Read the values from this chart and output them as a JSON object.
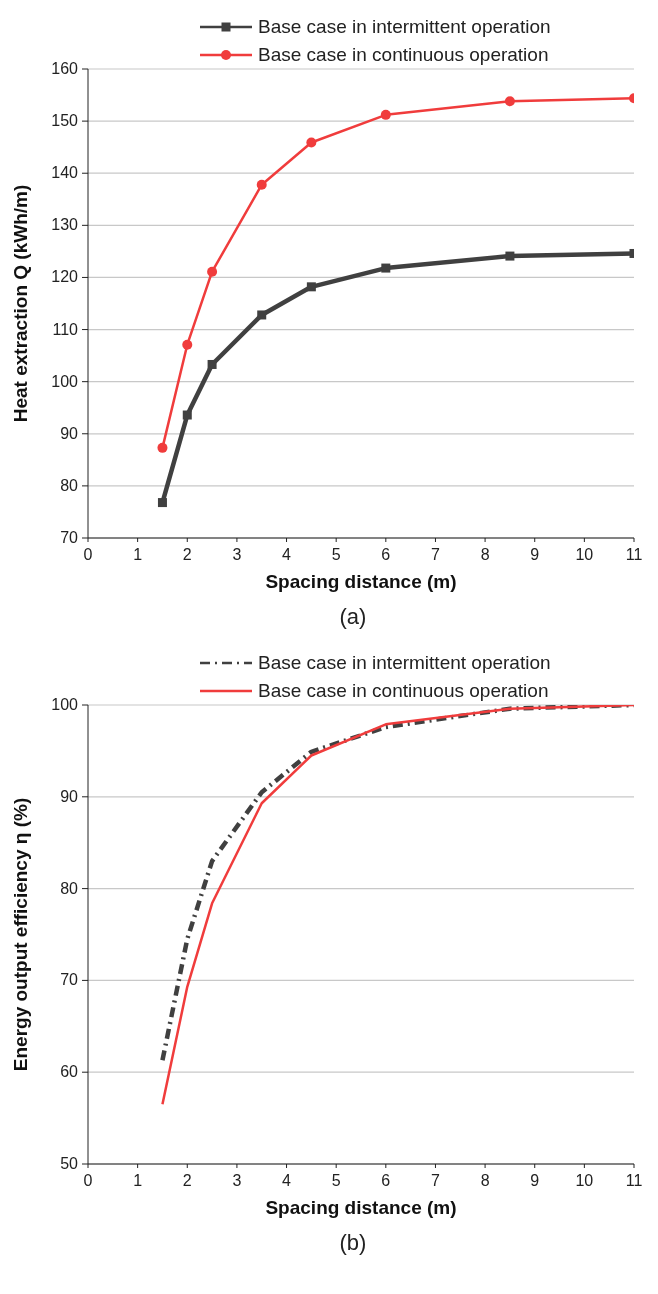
{
  "chart_data": [
    {
      "type": "line",
      "xlabel": "Spacing distance (m)",
      "ylabel": "Heat extraction Q (kWh/m)",
      "x": [
        1.5,
        2,
        2.5,
        3.5,
        4.5,
        6,
        8.5,
        11
      ],
      "series": [
        {
          "name": "Base case in intermittent operation",
          "color": "#404040",
          "marker": "square",
          "line_style": "solid",
          "values": [
            76.8,
            93.6,
            103.3,
            112.8,
            118.2,
            121.8,
            124.1,
            124.6
          ]
        },
        {
          "name": "Base case in continuous operation",
          "color": "#f03c3c",
          "marker": "circle",
          "line_style": "solid",
          "values": [
            87.3,
            107.1,
            121.1,
            137.8,
            145.9,
            151.2,
            153.8,
            154.4
          ]
        }
      ],
      "xlim": [
        0,
        11
      ],
      "xticks": [
        0,
        1,
        2,
        3,
        4,
        5,
        6,
        7,
        8,
        9,
        10,
        11
      ],
      "ylim": [
        70,
        160
      ],
      "yticks": [
        70,
        80,
        90,
        100,
        110,
        120,
        130,
        140,
        150,
        160
      ],
      "grid": "y",
      "legend": "top",
      "annotations": [
        "(a)"
      ]
    },
    {
      "type": "line",
      "xlabel": "Spacing distance (m)",
      "ylabel": "Energy output efficiency η (%)",
      "x": [
        1.5,
        2,
        2.5,
        3.5,
        4.5,
        6,
        8.5,
        11
      ],
      "series": [
        {
          "name": "Base case in intermittent operation",
          "color": "#404040",
          "marker": "none",
          "line_style": "dashed",
          "values": [
            61.3,
            74.5,
            83,
            90.5,
            94.9,
            97.6,
            99.6,
            100
          ]
        },
        {
          "name": "Base case in continuous operation",
          "color": "#f03c3c",
          "marker": "none",
          "line_style": "solid",
          "values": [
            56.5,
            69.3,
            78.4,
            89.3,
            94.5,
            97.9,
            99.6,
            100
          ]
        }
      ],
      "xlim": [
        0,
        11
      ],
      "xticks": [
        0,
        1,
        2,
        3,
        4,
        5,
        6,
        7,
        8,
        9,
        10,
        11
      ],
      "ylim": [
        50,
        100
      ],
      "yticks": [
        50,
        60,
        70,
        80,
        90,
        100
      ],
      "grid": "y",
      "legend": "top",
      "annotations": [
        "(b)"
      ]
    }
  ]
}
